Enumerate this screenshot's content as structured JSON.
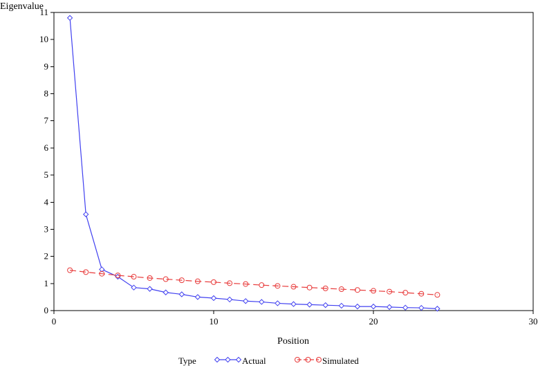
{
  "chart_data": {
    "type": "line",
    "title": "",
    "xlabel": "Position",
    "ylabel": "Eigenvalue",
    "xlim": [
      0,
      30
    ],
    "ylim": [
      0,
      11
    ],
    "xticks": [
      "0",
      "10",
      "20",
      "30"
    ],
    "yticks": [
      "0",
      "1",
      "2",
      "3",
      "4",
      "5",
      "6",
      "7",
      "8",
      "9",
      "10",
      "11"
    ],
    "grid": false,
    "legend": {
      "title": "Type",
      "placement": "bottom-center",
      "entries": [
        "Actual",
        "Simulated"
      ]
    },
    "series": [
      {
        "name": "Actual",
        "color": "#4040f0",
        "marker": "diamond",
        "line_style": "solid",
        "x": [
          1,
          2,
          3,
          4,
          5,
          6,
          7,
          8,
          9,
          10,
          11,
          12,
          13,
          14,
          15,
          16,
          17,
          18,
          19,
          20,
          21,
          22,
          23,
          24
        ],
        "values": [
          10.8,
          3.55,
          1.52,
          1.25,
          0.85,
          0.8,
          0.67,
          0.6,
          0.5,
          0.46,
          0.41,
          0.35,
          0.32,
          0.27,
          0.24,
          0.22,
          0.2,
          0.18,
          0.15,
          0.15,
          0.13,
          0.11,
          0.1,
          0.07
        ]
      },
      {
        "name": "Simulated",
        "color": "#e83a3a",
        "marker": "circle",
        "line_style": "dashed",
        "x": [
          1,
          2,
          3,
          4,
          5,
          6,
          7,
          8,
          9,
          10,
          11,
          12,
          13,
          14,
          15,
          16,
          17,
          18,
          19,
          20,
          21,
          22,
          23,
          24
        ],
        "values": [
          1.49,
          1.42,
          1.36,
          1.3,
          1.25,
          1.2,
          1.16,
          1.12,
          1.08,
          1.05,
          1.01,
          0.98,
          0.94,
          0.91,
          0.88,
          0.85,
          0.82,
          0.79,
          0.76,
          0.73,
          0.7,
          0.66,
          0.62,
          0.58
        ]
      }
    ]
  }
}
